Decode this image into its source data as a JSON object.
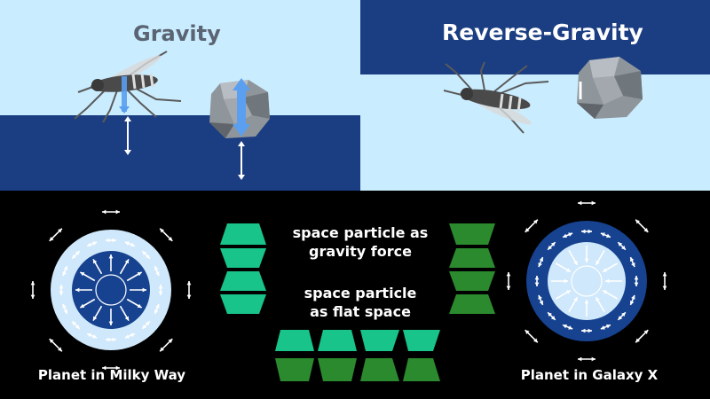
{
  "panels": {
    "gravity": {
      "title": "Gravity"
    },
    "reverse_gravity": {
      "title": "Reverse-Gravity"
    }
  },
  "legend": {
    "gravity_force_label_line1": "space particle as",
    "gravity_force_label_line2": "gravity force",
    "flat_space_label_line1": "space particle",
    "flat_space_label_line2": "as flat space"
  },
  "planets": {
    "milky_way": {
      "caption": "Planet in Milky Way"
    },
    "galaxy_x": {
      "caption": "Planet in Galaxy X"
    }
  },
  "colors": {
    "sky": "#c9ecff",
    "ground_blue": "#1b3d82",
    "deep_blue": "#16428f",
    "light_blue": "#cfe8fb",
    "teal_particle": "#18c48a",
    "dark_green_particle": "#2c8a2e",
    "rock_gray": "#8e959b",
    "arrow_blue": "#5a9ff0"
  }
}
